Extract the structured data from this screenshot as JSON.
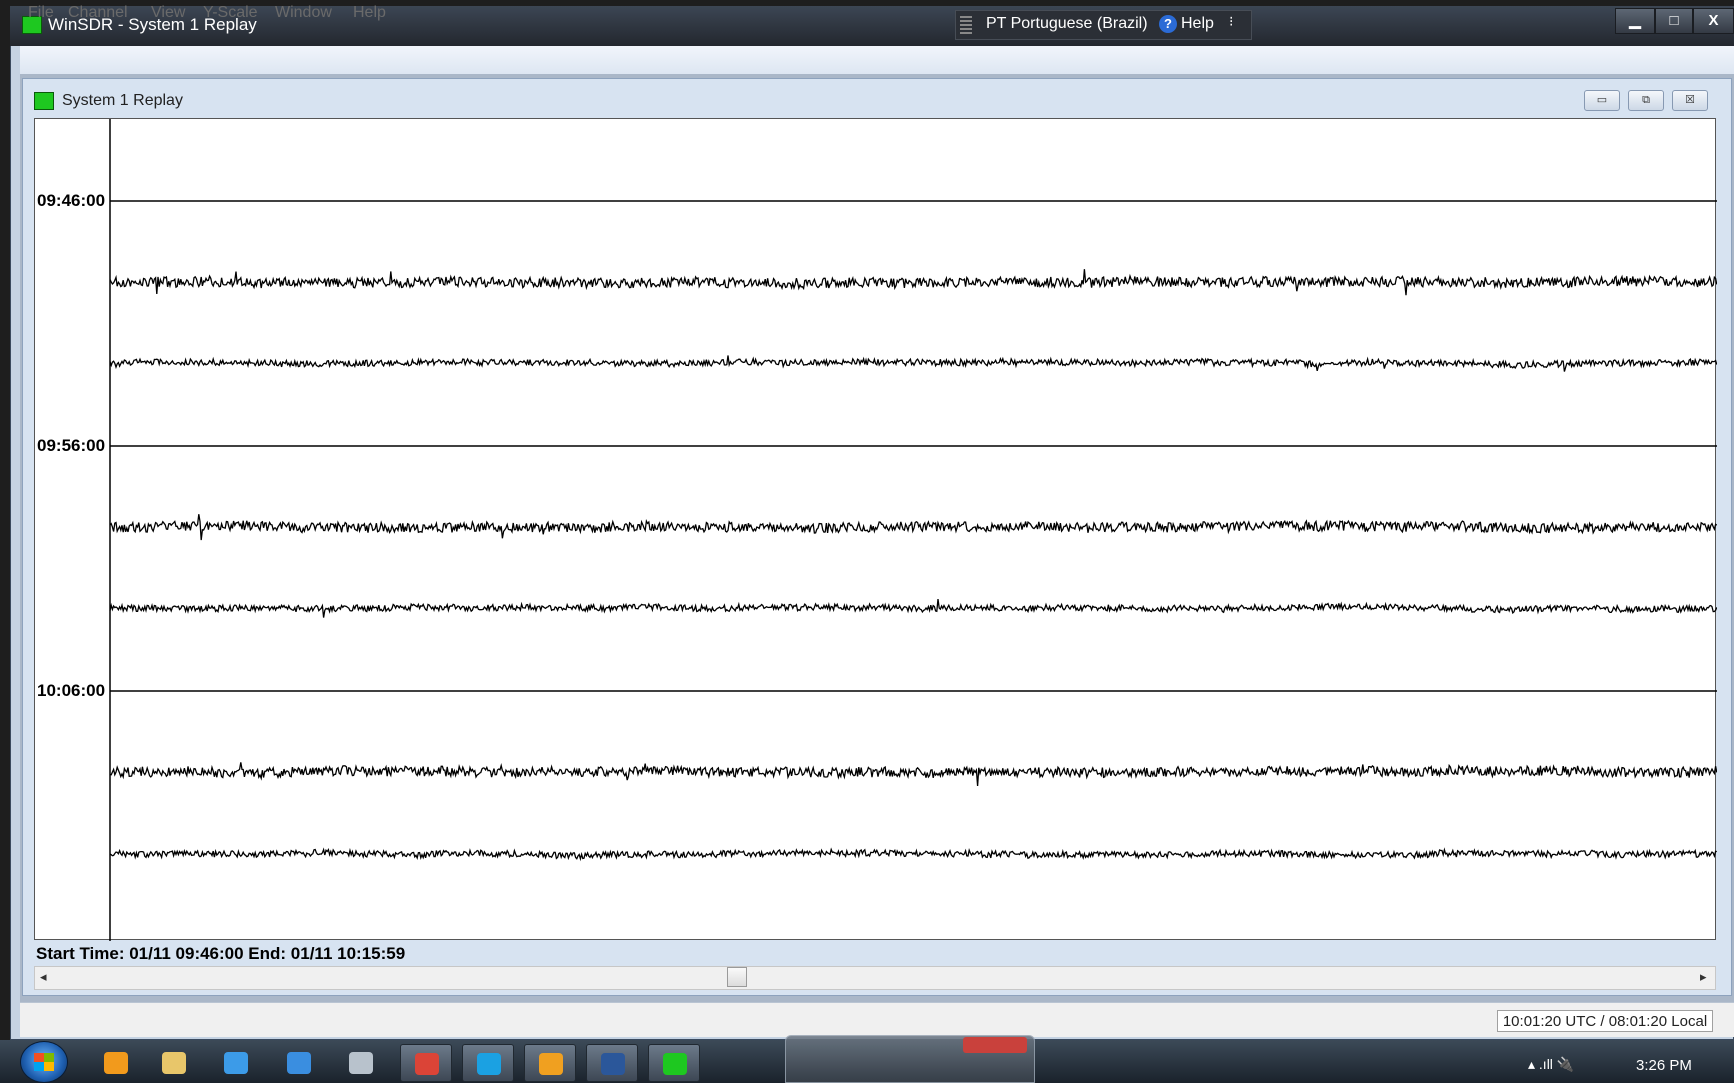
{
  "window": {
    "title": "WinSDR - System 1 Replay",
    "controls": {
      "minimize": "▁",
      "maximize": "□",
      "close": "X"
    }
  },
  "language_bar": {
    "language": "PT Portuguese (Brazil)",
    "help_label": "Help",
    "help_glyph": "?",
    "options_glyph": "⁝"
  },
  "menu": [
    "File",
    "Channel",
    "View",
    "Y-Scale",
    "Window",
    "Help"
  ],
  "child_window": {
    "title": "System 1 Replay",
    "controls": {
      "minimize": "▭",
      "restore": "⧉",
      "close": "☒"
    }
  },
  "helicorder": {
    "time_labels": [
      "09:46:00",
      "09:56:00",
      "10:06:00"
    ],
    "info": "Start Time: 01/11 09:46:00  End: 01/11 10:15:59",
    "trace_count": 6
  },
  "scrollbar": {
    "left_arrow": "◂",
    "right_arrow": "▸"
  },
  "status": {
    "time": "10:01:20 UTC / 08:01:20 Local"
  },
  "taskbar": {
    "apps": [
      {
        "name": "media-player-icon",
        "color": "#f29a1c"
      },
      {
        "name": "file-explorer-icon",
        "color": "#e8c66a"
      },
      {
        "name": "edge-icon",
        "color": "#3c9be8"
      },
      {
        "name": "internet-explorer-icon",
        "color": "#3a8ee0"
      },
      {
        "name": "scanner-icon",
        "color": "#b8c2cc"
      },
      {
        "name": "chrome-icon",
        "color": "#db4437"
      },
      {
        "name": "skype-icon",
        "color": "#1ba1e2"
      },
      {
        "name": "clock-app-icon",
        "color": "#f0a020"
      },
      {
        "name": "word-icon",
        "color": "#2b579a"
      },
      {
        "name": "winsdr-icon",
        "color": "#1ec820"
      }
    ],
    "clock": "3:26 PM",
    "tray": "▴ .ıll 🔌"
  },
  "colors": {
    "accent": "#1ec820",
    "plot_bg": "#ffffff",
    "trace": "#000000"
  }
}
